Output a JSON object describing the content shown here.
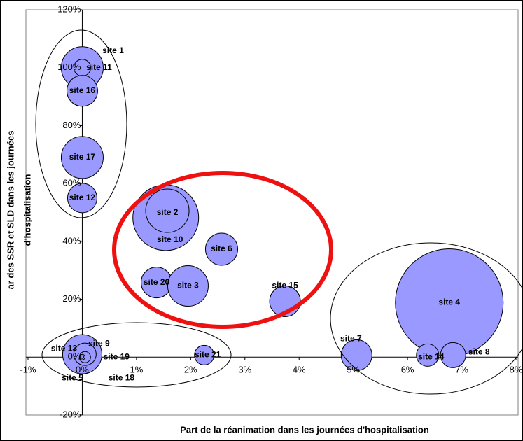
{
  "chart_data": {
    "type": "bubble",
    "xlabel": "Part de la réanimation dans les journées d'hospitalisation",
    "ylabel": [
      "ar des SSR et SLD dans les journées",
      "d'hospitalisation"
    ],
    "xlim": [
      -1,
      8
    ],
    "ylim": [
      -20,
      120
    ],
    "xticks": [
      {
        "value": -1,
        "label": "-1%"
      },
      {
        "value": 0,
        "label": "0%"
      },
      {
        "value": 1,
        "label": "1%"
      },
      {
        "value": 2,
        "label": "2%"
      },
      {
        "value": 3,
        "label": "3%"
      },
      {
        "value": 4,
        "label": "4%"
      },
      {
        "value": 5,
        "label": "5%"
      },
      {
        "value": 6,
        "label": "6%"
      },
      {
        "value": 7,
        "label": "7%"
      },
      {
        "value": 8,
        "label": "8%"
      }
    ],
    "yticks": [
      {
        "value": -20,
        "label": "-20%"
      },
      {
        "value": 0,
        "label": "0%"
      },
      {
        "value": 20,
        "label": "20%"
      },
      {
        "value": 40,
        "label": "40%"
      },
      {
        "value": 60,
        "label": "60%"
      },
      {
        "value": 80,
        "label": "80%"
      },
      {
        "value": 100,
        "label": "100%"
      },
      {
        "value": 120,
        "label": "120%"
      }
    ],
    "color": "#9999ff",
    "grid": false,
    "points": [
      {
        "name": "site 1",
        "x": 0,
        "y": 100,
        "size": 900
      },
      {
        "name": "site 11",
        "x": 0,
        "y": 100,
        "size": 144
      },
      {
        "name": "site 16",
        "x": 0,
        "y": 92,
        "size": 484
      },
      {
        "name": "site 17",
        "x": 0,
        "y": 69,
        "size": 900
      },
      {
        "name": "site 12",
        "x": 0,
        "y": 55,
        "size": 441
      },
      {
        "name": "site 10",
        "x": 1.54,
        "y": 48.2,
        "size": 2209
      },
      {
        "name": "site 2",
        "x": 1.57,
        "y": 50.6,
        "size": 961
      },
      {
        "name": "site 6",
        "x": 2.57,
        "y": 37.3,
        "size": 529
      },
      {
        "name": "site 20",
        "x": 1.37,
        "y": 25.8,
        "size": 484
      },
      {
        "name": "site 3",
        "x": 1.95,
        "y": 24.6,
        "size": 841
      },
      {
        "name": "site 15",
        "x": 3.74,
        "y": 19.3,
        "size": 484
      },
      {
        "name": "site 4",
        "x": 6.77,
        "y": 18.8,
        "size": 5929
      },
      {
        "name": "site 7",
        "x": 5.06,
        "y": 0.7,
        "size": 484
      },
      {
        "name": "site 14",
        "x": 6.37,
        "y": 0.7,
        "size": 256
      },
      {
        "name": "site 8",
        "x": 6.84,
        "y": 0.7,
        "size": 324
      },
      {
        "name": "site 21",
        "x": 2.25,
        "y": 0.7,
        "size": 196
      },
      {
        "name": "site 13",
        "x": 0,
        "y": 1,
        "size": 784
      },
      {
        "name": "site 9",
        "x": 0.05,
        "y": 1,
        "size": 256
      },
      {
        "name": "site 19",
        "x": 0.05,
        "y": 0,
        "size": 64
      },
      {
        "name": "site 5",
        "x": 0,
        "y": 0,
        "size": 16
      },
      {
        "name": "site 18",
        "x": 0,
        "y": 0,
        "size": 4
      }
    ]
  }
}
